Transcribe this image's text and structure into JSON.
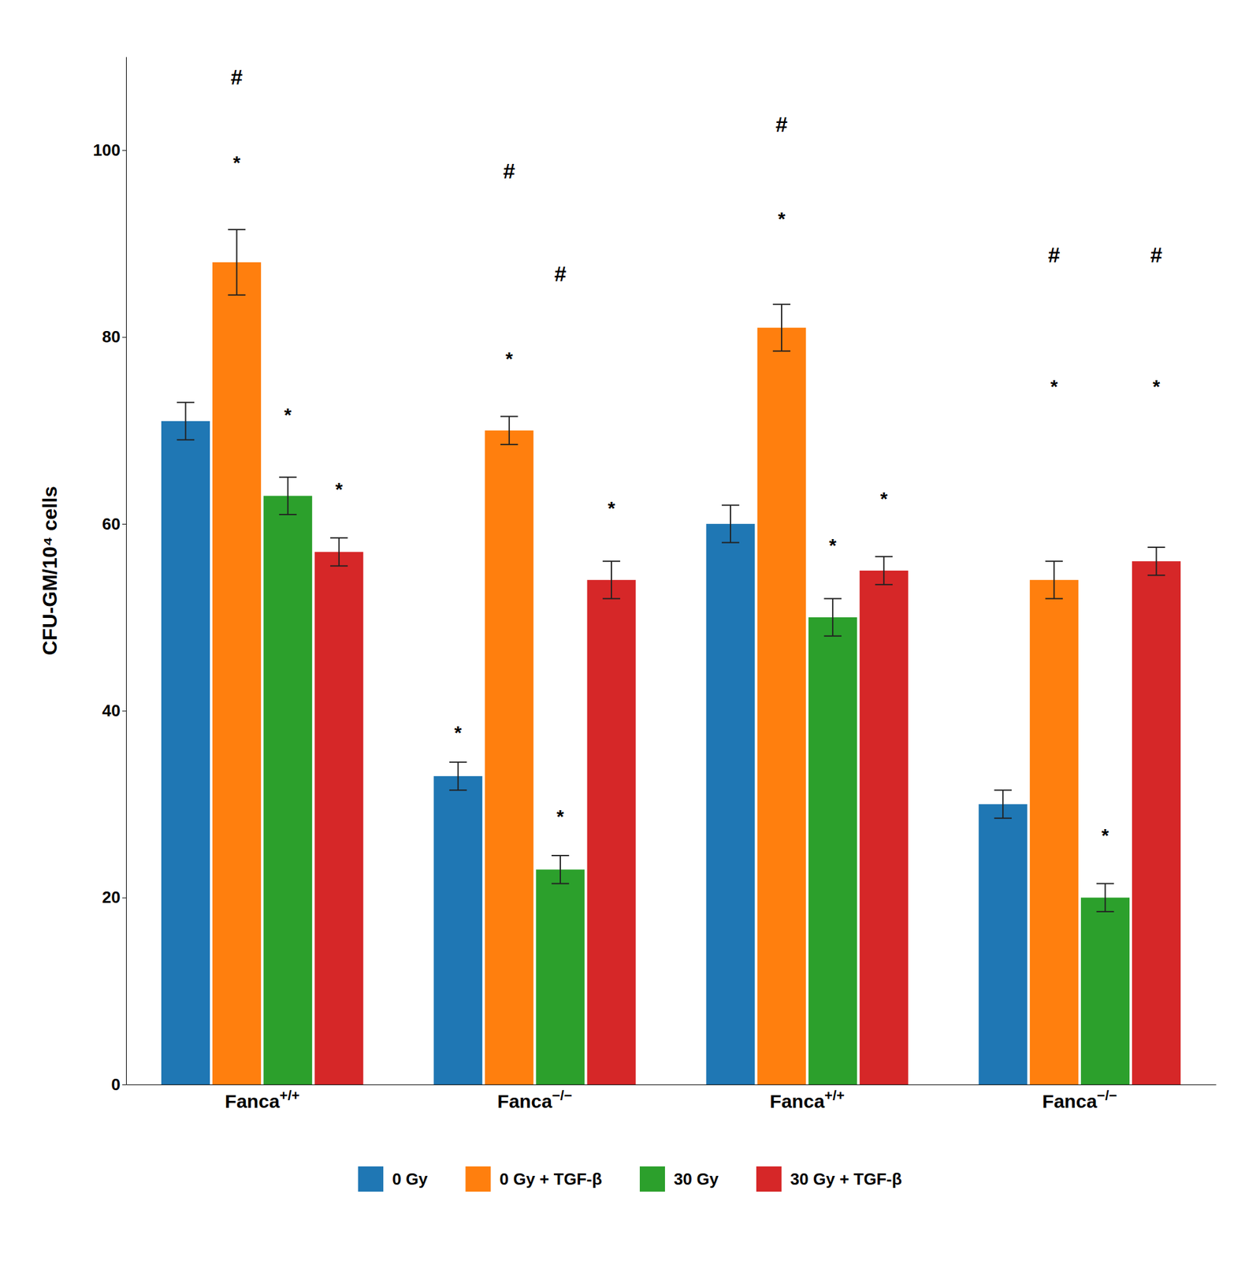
{
  "chart_data": {
    "type": "bar",
    "categories": [
      "Fanca+/+",
      "Fanca−/−",
      "Fanca+/+",
      "Fanca−/−"
    ],
    "series": [
      {
        "name": "0 Gy",
        "values": [
          71,
          33,
          60,
          30
        ],
        "errors": [
          2.0,
          1.5,
          2.0,
          1.5
        ]
      },
      {
        "name": "0 Gy + TGF-β",
        "values": [
          88,
          70,
          81,
          54
        ],
        "errors": [
          3.5,
          1.5,
          2.5,
          2.0
        ]
      },
      {
        "name": "30 Gy",
        "values": [
          63,
          23,
          50,
          20
        ],
        "errors": [
          2.0,
          1.5,
          2.0,
          1.5
        ]
      },
      {
        "name": "30 Gy + TGF-β",
        "values": [
          57,
          54,
          55,
          56
        ],
        "errors": [
          1.5,
          2.0,
          1.5,
          1.5
        ]
      }
    ],
    "ylabel": "CFU-GM/10⁴ cells",
    "ylim": [
      0,
      110
    ],
    "yticks": [
      0,
      20,
      40,
      60,
      80,
      100
    ],
    "grid": false,
    "legend": "bottom",
    "annotations": [
      {
        "text": "#",
        "category": 0,
        "series": 1,
        "y": 107
      },
      {
        "text": "*",
        "category": 0,
        "series": 1,
        "y": 98
      },
      {
        "text": "*",
        "category": 0,
        "series": 2,
        "y": 71
      },
      {
        "text": "*",
        "category": 0,
        "series": 3,
        "y": 63
      },
      {
        "text": "*",
        "category": 1,
        "series": 0,
        "y": 37
      },
      {
        "text": "#",
        "category": 1,
        "series": 1,
        "y": 97
      },
      {
        "text": "*",
        "category": 1,
        "series": 1,
        "y": 77
      },
      {
        "text": "#",
        "category": 1,
        "series": 2,
        "y": 86
      },
      {
        "text": "*",
        "category": 1,
        "series": 2,
        "y": 28
      },
      {
        "text": "*",
        "category": 1,
        "series": 3,
        "y": 61
      },
      {
        "text": "#",
        "category": 2,
        "series": 1,
        "y": 102
      },
      {
        "text": "*",
        "category": 2,
        "series": 1,
        "y": 92
      },
      {
        "text": "*",
        "category": 2,
        "series": 2,
        "y": 57
      },
      {
        "text": "*",
        "category": 2,
        "series": 3,
        "y": 62
      },
      {
        "text": "#",
        "category": 3,
        "series": 1,
        "y": 88
      },
      {
        "text": "*",
        "category": 3,
        "series": 1,
        "y": 74
      },
      {
        "text": "*",
        "category": 3,
        "series": 2,
        "y": 26
      },
      {
        "text": "#",
        "category": 3,
        "series": 3,
        "y": 88
      },
      {
        "text": "*",
        "category": 3,
        "series": 3,
        "y": 74
      }
    ]
  }
}
